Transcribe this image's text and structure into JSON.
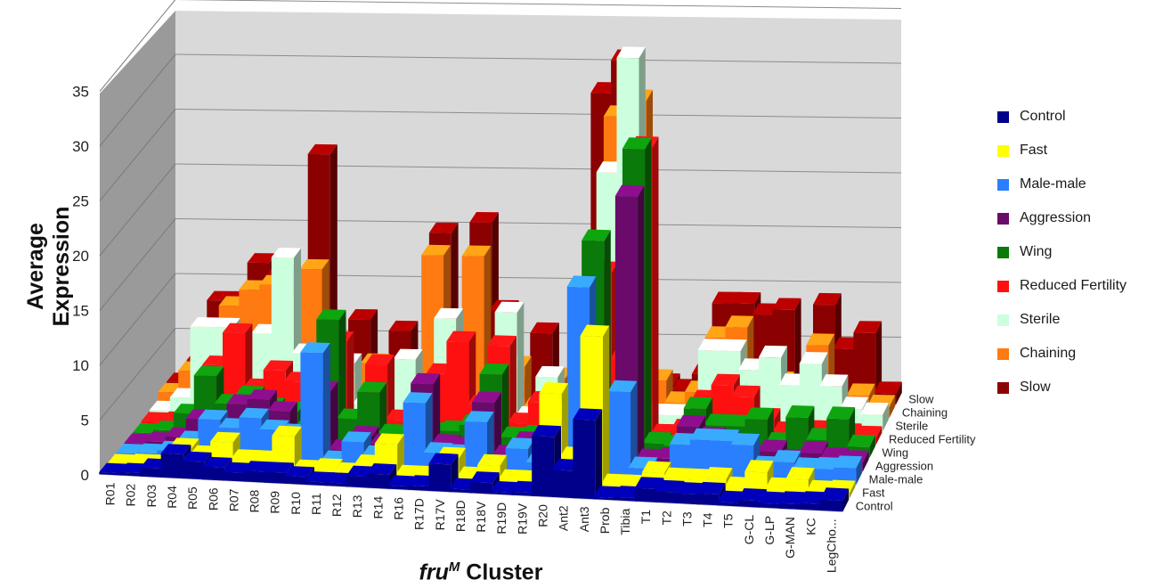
{
  "chart_data": {
    "type": "bar",
    "ylabel": "Average Expression",
    "xlabel_italic": "fru",
    "xlabel_sup": "M",
    "xlabel_rest": " Cluster",
    "ylim": [
      0,
      35
    ],
    "yticks": [
      0,
      5,
      10,
      15,
      20,
      25,
      30,
      35
    ],
    "categories": [
      "R01",
      "R02",
      "R03",
      "R04",
      "R05",
      "R06",
      "R07",
      "R08",
      "R09",
      "R10",
      "R11",
      "R12",
      "R13",
      "R14",
      "R16",
      "R17D",
      "R17V",
      "R18D",
      "R18V",
      "R19D",
      "R19V",
      "R20",
      "Ant2",
      "Ant3",
      "Prob",
      "Tibia",
      "T1",
      "T2",
      "T3",
      "T4",
      "T5",
      "G-CL",
      "G-LP",
      "G-MAN",
      "KC",
      "LegCho..."
    ],
    "series": [
      {
        "name": "Control",
        "color": "#00008b",
        "values": [
          0.2,
          0.3,
          0.8,
          2.2,
          1.6,
          1.2,
          0.8,
          1.0,
          1.0,
          0.7,
          0.3,
          0.3,
          1.0,
          1.3,
          0.3,
          0.4,
          2.5,
          0.3,
          1.0,
          0.2,
          0.3,
          5.5,
          2.5,
          7.2,
          0.2,
          0.3,
          1.2,
          1.0,
          0.9,
          1.0,
          0.3,
          0.6,
          0.4,
          0.5,
          0.6,
          1.0
        ]
      },
      {
        "name": "Fast",
        "color": "#ffff00",
        "values": [
          0.1,
          0.2,
          0.2,
          1.8,
          1.2,
          2.5,
          1.0,
          1.0,
          3.3,
          0.3,
          0.5,
          0.2,
          1.0,
          3.0,
          0.2,
          0.2,
          2.0,
          0.3,
          1.5,
          0.2,
          0.2,
          8.3,
          2.5,
          13.7,
          0.2,
          0.2,
          1.5,
          1.0,
          1.0,
          1.2,
          0.4,
          2.0,
          0.5,
          1.5,
          0.4,
          0.5
        ]
      },
      {
        "name": "Male-male",
        "color": "#2a7fff",
        "values": [
          0.1,
          0.2,
          0.5,
          1.5,
          3.5,
          2.8,
          3.8,
          2.8,
          2.5,
          10.0,
          0.2,
          2.0,
          0.8,
          1.5,
          5.8,
          1.3,
          1.2,
          4.3,
          0.4,
          2.0,
          0.8,
          0.2,
          17.0,
          4.3,
          7.6,
          0.7,
          0.3,
          3.0,
          3.5,
          3.5,
          3.2,
          1.2,
          1.8,
          1.2,
          1.3,
          1.5
        ]
      },
      {
        "name": "Aggression",
        "color": "#6a0a6a",
        "values": [
          0.1,
          0.3,
          0.8,
          2.5,
          2.5,
          4.0,
          4.5,
          3.5,
          1.5,
          5.5,
          0.2,
          1.5,
          0.8,
          0.5,
          6.5,
          1.0,
          0.8,
          5.0,
          0.2,
          1.5,
          0.3,
          0.5,
          0.8,
          0.5,
          24.3,
          0.3,
          0.5,
          3.5,
          2.5,
          2.0,
          1.0,
          1.5,
          0.7,
          1.5,
          1.0,
          0.8
        ]
      },
      {
        "name": "Wing",
        "color": "#0a7a0a",
        "values": [
          0.1,
          0.4,
          2.0,
          5.5,
          3.0,
          3.8,
          2.8,
          2.5,
          1.2,
          11.0,
          2.0,
          4.5,
          0.7,
          0.6,
          1.0,
          1.2,
          1.8,
          6.5,
          0.8,
          1.0,
          0.8,
          0.5,
          19.0,
          1.5,
          27.5,
          0.7,
          0.5,
          4.0,
          2.5,
          2.5,
          3.2,
          1.0,
          3.5,
          1.5,
          3.5,
          1.0
        ]
      },
      {
        "name": "Reduced Fertility",
        "color": "#ff1010",
        "values": [
          0.2,
          0.3,
          0.8,
          5.5,
          8.5,
          3.5,
          5.2,
          4.2,
          6.0,
          8.0,
          0.7,
          6.0,
          1.0,
          0.8,
          5.3,
          8.3,
          2.5,
          8.0,
          1.0,
          3.0,
          0.4,
          4.0,
          15.0,
          7.0,
          26.5,
          0.3,
          0.8,
          3.5,
          5.0,
          4.0,
          2.0,
          0.8,
          1.0,
          1.0,
          0.8,
          0.6
        ]
      },
      {
        "name": "Sterile",
        "color": "#ccffdd",
        "values": [
          0.3,
          1.5,
          8.0,
          8.0,
          6.5,
          7.5,
          14.5,
          5.8,
          1.5,
          5.0,
          1.3,
          2.2,
          5.5,
          1.0,
          9.3,
          1.5,
          1.2,
          10.0,
          0.5,
          4.2,
          1.0,
          0.3,
          23.0,
          33.5,
          1.0,
          1.0,
          1.0,
          7.0,
          7.0,
          5.3,
          6.5,
          4.0,
          6.0,
          4.0,
          2.0,
          1.5
        ]
      },
      {
        "name": "Chaining",
        "color": "#ff7a10",
        "values": [
          1.0,
          3.0,
          7.0,
          9.0,
          10.5,
          11.0,
          9.0,
          12.5,
          2.5,
          2.3,
          4.0,
          1.0,
          4.0,
          14.0,
          1.5,
          14.0,
          2.0,
          4.0,
          0.2,
          3.0,
          1.0,
          1.0,
          27.0,
          28.5,
          3.0,
          1.0,
          2.0,
          7.0,
          8.0,
          2.5,
          3.0,
          2.0,
          6.5,
          1.0,
          2.0,
          1.0
        ]
      },
      {
        "name": "Slow",
        "color": "#8b0000",
        "values": [
          1.0,
          3.0,
          8.5,
          8.5,
          12.0,
          11.0,
          8.5,
          22.0,
          2.5,
          7.0,
          2.5,
          6.0,
          3.0,
          15.0,
          5.0,
          16.0,
          8.0,
          1.0,
          6.0,
          1.0,
          1.5,
          28.0,
          31.0,
          1.0,
          1.5,
          1.0,
          2.5,
          9.0,
          9.0,
          8.0,
          8.5,
          1.5,
          9.0,
          5.0,
          6.5,
          1.0
        ]
      }
    ],
    "legend_position": "right",
    "grid": true
  }
}
